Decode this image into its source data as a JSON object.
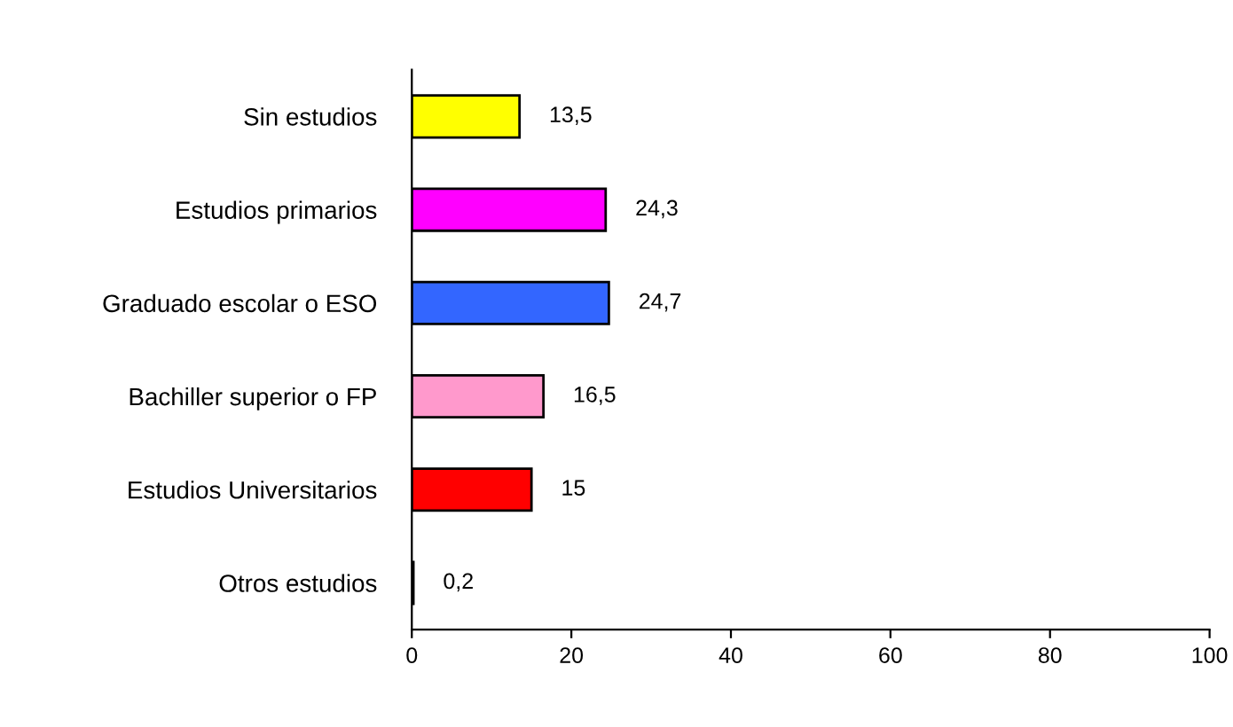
{
  "chart_data": {
    "type": "bar",
    "orientation": "horizontal",
    "categories": [
      "Sin estudios",
      "Estudios primarios",
      "Graduado escolar o ESO",
      "Bachiller superior o FP",
      "Estudios Universitarios",
      "Otros estudios"
    ],
    "values": [
      13.5,
      24.3,
      24.7,
      16.5,
      15,
      0.2
    ],
    "colors": [
      "#ffff00",
      "#ff00ff",
      "#3366ff",
      "#ff99cc",
      "#ff0000",
      "#ffffff"
    ],
    "value_labels": [
      "13,5",
      "24,3",
      "24,7",
      "16,5",
      "15",
      "0,2"
    ],
    "xlim": [
      0,
      100
    ],
    "xticks": [
      0,
      20,
      40,
      60,
      80,
      100
    ],
    "grid": false,
    "legend": false
  }
}
